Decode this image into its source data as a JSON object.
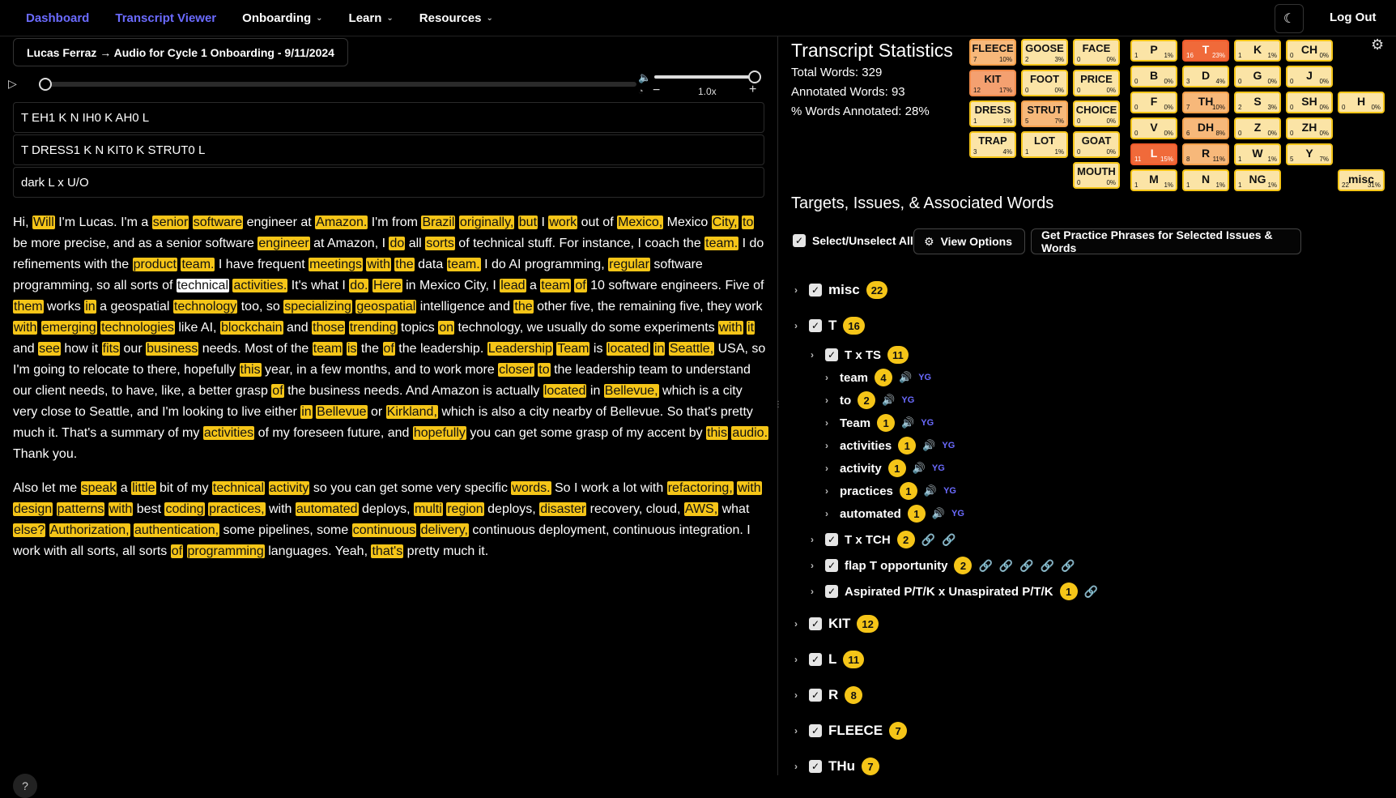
{
  "nav": {
    "dashboard": "Dashboard",
    "transcript_viewer": "Transcript Viewer",
    "onboarding": "Onboarding",
    "learn": "Learn",
    "resources": "Resources",
    "logout": "Log Out"
  },
  "audio": {
    "title": "Lucas Ferraz → Audio for Cycle 1 Onboarding - 9/11/2024",
    "speed": "1.0x",
    "progress": 0,
    "volume": 1.0
  },
  "transcriptions": [
    "T EH1 K N IH0 K AH0 L",
    "T DRESS1 K N KIT0 K STRUT0 L",
    "dark L x U/O"
  ],
  "paragraphs": [
    [
      [
        "Hi, ",
        0
      ],
      [
        "Will",
        1
      ],
      [
        " I'm Lucas. I'm a ",
        0
      ],
      [
        "senior",
        1
      ],
      [
        " ",
        0
      ],
      [
        "software",
        1
      ],
      [
        " engineer at ",
        0
      ],
      [
        "Amazon.",
        1
      ],
      [
        " I'm from ",
        0
      ],
      [
        "Brazil",
        1
      ],
      [
        " ",
        0
      ],
      [
        "originally,",
        1
      ],
      [
        " ",
        0
      ],
      [
        "but",
        1
      ],
      [
        " I ",
        0
      ],
      [
        "work",
        1
      ],
      [
        " out of ",
        0
      ],
      [
        "Mexico,",
        1
      ],
      [
        " Mexico ",
        0
      ],
      [
        "City,",
        1
      ],
      [
        " ",
        0
      ],
      [
        "to",
        1
      ],
      [
        " be more precise, and as a senior software ",
        0
      ],
      [
        "engineer",
        1
      ],
      [
        " at Amazon, I ",
        0
      ],
      [
        "do",
        1
      ],
      [
        " all ",
        0
      ],
      [
        "sorts",
        1
      ],
      [
        " of technical stuff. For instance, I coach the ",
        0
      ],
      [
        "team.",
        1
      ],
      [
        " I do refinements with the ",
        0
      ],
      [
        "product",
        1
      ],
      [
        " ",
        0
      ],
      [
        "team.",
        1
      ],
      [
        " I have frequent ",
        0
      ],
      [
        "meetings",
        1
      ],
      [
        " ",
        0
      ],
      [
        "with",
        1
      ],
      [
        " ",
        0
      ],
      [
        "the",
        1
      ],
      [
        " data ",
        0
      ],
      [
        "team.",
        1
      ],
      [
        " I do AI programming, ",
        0
      ],
      [
        "regular",
        1
      ],
      [
        " software programming, so all sorts of ",
        0
      ],
      [
        "technical",
        2
      ],
      [
        " ",
        0
      ],
      [
        "activities.",
        1
      ],
      [
        " It's what I ",
        0
      ],
      [
        "do.",
        1
      ],
      [
        " ",
        0
      ],
      [
        "Here",
        1
      ],
      [
        " in Mexico City, I ",
        0
      ],
      [
        "lead",
        1
      ],
      [
        " a ",
        0
      ],
      [
        "team",
        1
      ],
      [
        " ",
        0
      ],
      [
        "of",
        1
      ],
      [
        " 10 software engineers. Five of ",
        0
      ],
      [
        "them",
        1
      ],
      [
        " works ",
        0
      ],
      [
        "in",
        1
      ],
      [
        " a geospatial ",
        0
      ],
      [
        "technology",
        1
      ],
      [
        " too, so ",
        0
      ],
      [
        "specializing",
        1
      ],
      [
        " ",
        0
      ],
      [
        "geospatial",
        1
      ],
      [
        " intelligence and ",
        0
      ],
      [
        "the",
        1
      ],
      [
        " other five, the remaining five, they work ",
        0
      ],
      [
        "with",
        1
      ],
      [
        " ",
        0
      ],
      [
        "emerging",
        1
      ],
      [
        " ",
        0
      ],
      [
        "technologies",
        1
      ],
      [
        " like AI, ",
        0
      ],
      [
        "blockchain",
        1
      ],
      [
        " and ",
        0
      ],
      [
        "those",
        1
      ],
      [
        " ",
        0
      ],
      [
        "trending",
        1
      ],
      [
        " topics ",
        0
      ],
      [
        "on",
        1
      ],
      [
        " technology, we usually do some experiments ",
        0
      ],
      [
        "with",
        1
      ],
      [
        " ",
        0
      ],
      [
        "it",
        1
      ],
      [
        " and ",
        0
      ],
      [
        "see",
        1
      ],
      [
        " how it ",
        0
      ],
      [
        "fits",
        1
      ],
      [
        " our ",
        0
      ],
      [
        "business",
        1
      ],
      [
        " needs. Most of the ",
        0
      ],
      [
        "team",
        1
      ],
      [
        " ",
        0
      ],
      [
        "is",
        1
      ],
      [
        " the ",
        0
      ],
      [
        "of",
        1
      ],
      [
        " the leadership. ",
        0
      ],
      [
        "Leadership",
        1
      ],
      [
        " ",
        0
      ],
      [
        "Team",
        1
      ],
      [
        " is ",
        0
      ],
      [
        "located",
        1
      ],
      [
        " ",
        0
      ],
      [
        "in",
        1
      ],
      [
        " ",
        0
      ],
      [
        "Seattle,",
        1
      ],
      [
        " USA, so I'm going to relocate to there, hopefully ",
        0
      ],
      [
        "this",
        1
      ],
      [
        " year, in a few months, and to work more ",
        0
      ],
      [
        "closer",
        1
      ],
      [
        " ",
        0
      ],
      [
        "to",
        1
      ],
      [
        " the leadership team to understand our client needs, to have, like, a better grasp ",
        0
      ],
      [
        "of",
        1
      ],
      [
        " the business needs. And Amazon is actually ",
        0
      ],
      [
        "located",
        1
      ],
      [
        " in ",
        0
      ],
      [
        "Bellevue,",
        1
      ],
      [
        " which is a city very close to Seattle, and I'm looking to live either ",
        0
      ],
      [
        "in",
        1
      ],
      [
        " ",
        0
      ],
      [
        "Bellevue",
        1
      ],
      [
        " or ",
        0
      ],
      [
        "Kirkland,",
        1
      ],
      [
        " which is also a city nearby of Bellevue. So that's pretty much it. That's a summary of my ",
        0
      ],
      [
        "activities",
        1
      ],
      [
        " of my foreseen future, and ",
        0
      ],
      [
        "hopefully",
        1
      ],
      [
        " you can get some grasp of my accent by ",
        0
      ],
      [
        "this",
        1
      ],
      [
        " ",
        0
      ],
      [
        "audio.",
        1
      ],
      [
        " Thank you.",
        0
      ]
    ],
    [
      [
        "Also let me ",
        0
      ],
      [
        "speak",
        1
      ],
      [
        " a ",
        0
      ],
      [
        "little",
        1
      ],
      [
        " bit of my ",
        0
      ],
      [
        "technical",
        1
      ],
      [
        " ",
        0
      ],
      [
        "activity",
        1
      ],
      [
        " so you can get some very specific ",
        0
      ],
      [
        "words.",
        1
      ],
      [
        " So I work a lot with ",
        0
      ],
      [
        "refactoring,",
        1
      ],
      [
        " ",
        0
      ],
      [
        "with",
        1
      ],
      [
        " ",
        0
      ],
      [
        "design",
        1
      ],
      [
        " ",
        0
      ],
      [
        "patterns",
        1
      ],
      [
        " ",
        0
      ],
      [
        "with",
        1
      ],
      [
        " best ",
        0
      ],
      [
        "coding",
        1
      ],
      [
        " ",
        0
      ],
      [
        "practices,",
        1
      ],
      [
        " with ",
        0
      ],
      [
        "automated",
        1
      ],
      [
        " deploys, ",
        0
      ],
      [
        "multi",
        1
      ],
      [
        " ",
        0
      ],
      [
        "region",
        1
      ],
      [
        " deploys, ",
        0
      ],
      [
        "disaster",
        1
      ],
      [
        " recovery, cloud, ",
        0
      ],
      [
        "AWS,",
        1
      ],
      [
        " what ",
        0
      ],
      [
        "else?",
        1
      ],
      [
        " ",
        0
      ],
      [
        "Authorization,",
        1
      ],
      [
        " ",
        0
      ],
      [
        "authentication,",
        1
      ],
      [
        " some pipelines, some ",
        0
      ],
      [
        "continuous",
        1
      ],
      [
        " ",
        0
      ],
      [
        "delivery,",
        1
      ],
      [
        " continuous deployment, continuous integration. I work with all sorts, all sorts ",
        0
      ],
      [
        "of",
        1
      ],
      [
        " ",
        0
      ],
      [
        "programming",
        1
      ],
      [
        " languages. Yeah, ",
        0
      ],
      [
        "that's",
        1
      ],
      [
        " pretty much it.",
        0
      ]
    ]
  ],
  "stats": {
    "title": "Transcript Statistics",
    "total": "Total Words: 329",
    "annotated": "Annotated Words: 93",
    "percent": "% Words Annotated: 28%"
  },
  "vowels": [
    {
      "n": "FLEECE",
      "c": "7",
      "p": "10%",
      "s": "o1"
    },
    {
      "n": "GOOSE",
      "c": "2",
      "p": "3%",
      "s": ""
    },
    {
      "n": "FACE",
      "c": "0",
      "p": "0%",
      "s": ""
    },
    {
      "n": "KIT",
      "c": "12",
      "p": "17%",
      "s": "o2"
    },
    {
      "n": "FOOT",
      "c": "0",
      "p": "0%",
      "s": ""
    },
    {
      "n": "PRICE",
      "c": "0",
      "p": "0%",
      "s": ""
    },
    {
      "n": "DRESS",
      "c": "1",
      "p": "1%",
      "s": ""
    },
    {
      "n": "STRUT",
      "c": "5",
      "p": "7%",
      "s": "o1"
    },
    {
      "n": "CHOICE",
      "c": "0",
      "p": "0%",
      "s": ""
    },
    {
      "n": "TRAP",
      "c": "3",
      "p": "4%",
      "s": ""
    },
    {
      "n": "LOT",
      "c": "1",
      "p": "1%",
      "s": ""
    },
    {
      "n": "GOAT",
      "c": "0",
      "p": "0%",
      "s": ""
    },
    {
      "n": "MOUTH",
      "c": "0",
      "p": "0%",
      "s": ""
    }
  ],
  "consonants": [
    {
      "n": "P",
      "c": "1",
      "p": "1%",
      "s": ""
    },
    {
      "n": "T",
      "c": "16",
      "p": "23%",
      "s": "red"
    },
    {
      "n": "K",
      "c": "1",
      "p": "1%",
      "s": ""
    },
    {
      "n": "CH",
      "c": "0",
      "p": "0%",
      "s": ""
    },
    {
      "n": "B",
      "c": "0",
      "p": "0%",
      "s": ""
    },
    {
      "n": "D",
      "c": "3",
      "p": "4%",
      "s": ""
    },
    {
      "n": "G",
      "c": "0",
      "p": "0%",
      "s": ""
    },
    {
      "n": "J",
      "c": "0",
      "p": "0%",
      "s": ""
    },
    {
      "n": "F",
      "c": "0",
      "p": "0%",
      "s": ""
    },
    {
      "n": "TH",
      "c": "7",
      "p": "10%",
      "s": "o1"
    },
    {
      "n": "S",
      "c": "2",
      "p": "3%",
      "s": ""
    },
    {
      "n": "SH",
      "c": "0",
      "p": "0%",
      "s": ""
    },
    {
      "n": "H",
      "c": "0",
      "p": "0%",
      "s": ""
    },
    {
      "n": "V",
      "c": "0",
      "p": "0%",
      "s": ""
    },
    {
      "n": "DH",
      "c": "6",
      "p": "8%",
      "s": "o1"
    },
    {
      "n": "Z",
      "c": "0",
      "p": "0%",
      "s": ""
    },
    {
      "n": "ZH",
      "c": "0",
      "p": "0%",
      "s": ""
    },
    {
      "n": "L",
      "c": "11",
      "p": "15%",
      "s": "red"
    },
    {
      "n": "R",
      "c": "8",
      "p": "11%",
      "s": "o1"
    },
    {
      "n": "W",
      "c": "1",
      "p": "1%",
      "s": ""
    },
    {
      "n": "Y",
      "c": "5",
      "p": "7%",
      "s": ""
    },
    {
      "n": "M",
      "c": "1",
      "p": "1%",
      "s": ""
    },
    {
      "n": "N",
      "c": "1",
      "p": "1%",
      "s": ""
    },
    {
      "n": "NG",
      "c": "1",
      "p": "1%",
      "s": ""
    },
    {
      "n": "misc",
      "c": "22",
      "p": "31%",
      "s": ""
    }
  ],
  "targets": {
    "title": "Targets, Issues, & Associated Words",
    "select_all": "Select/Unselect All",
    "view_options": "View Options",
    "practice": "Get Practice Phrases for Selected Issues & Words"
  },
  "tree": [
    {
      "label": "misc",
      "count": "22",
      "level": 0,
      "speaker": false,
      "links": 0
    },
    {
      "label": "T",
      "count": "16",
      "level": 0,
      "speaker": false,
      "links": 0
    },
    {
      "label": "T x TS",
      "count": "11",
      "level": 1,
      "speaker": false,
      "links": 0
    },
    {
      "label": "team",
      "count": "4",
      "level": 2,
      "speaker": true,
      "tag": "YG",
      "links": 0
    },
    {
      "label": "to",
      "count": "2",
      "level": 2,
      "speaker": true,
      "tag": "YG",
      "links": 0
    },
    {
      "label": "Team",
      "count": "1",
      "level": 2,
      "speaker": true,
      "tag": "YG",
      "links": 0
    },
    {
      "label": "activities",
      "count": "1",
      "level": 2,
      "speaker": true,
      "tag": "YG",
      "links": 0
    },
    {
      "label": "activity",
      "count": "1",
      "level": 2,
      "speaker": true,
      "tag": "YG",
      "links": 0
    },
    {
      "label": "practices",
      "count": "1",
      "level": 2,
      "speaker": true,
      "tag": "YG",
      "links": 0
    },
    {
      "label": "automated",
      "count": "1",
      "level": 2,
      "speaker": true,
      "tag": "YG",
      "links": 0
    },
    {
      "label": "T x TCH",
      "count": "2",
      "level": 1,
      "speaker": false,
      "links": 2
    },
    {
      "label": "flap T opportunity",
      "count": "2",
      "level": 1,
      "speaker": false,
      "links": 5
    },
    {
      "label": "Aspirated P/T/K x Unaspirated P/T/K",
      "count": "1",
      "level": 1,
      "speaker": false,
      "links": 1
    },
    {
      "label": "KIT",
      "count": "12",
      "level": 0,
      "speaker": false,
      "links": 0
    },
    {
      "label": "L",
      "count": "11",
      "level": 0,
      "speaker": false,
      "links": 0
    },
    {
      "label": "R",
      "count": "8",
      "level": 0,
      "speaker": false,
      "links": 0
    },
    {
      "label": "FLEECE",
      "count": "7",
      "level": 0,
      "speaker": false,
      "links": 0
    },
    {
      "label": "THu",
      "count": "7",
      "level": 0,
      "speaker": false,
      "links": 0
    }
  ]
}
